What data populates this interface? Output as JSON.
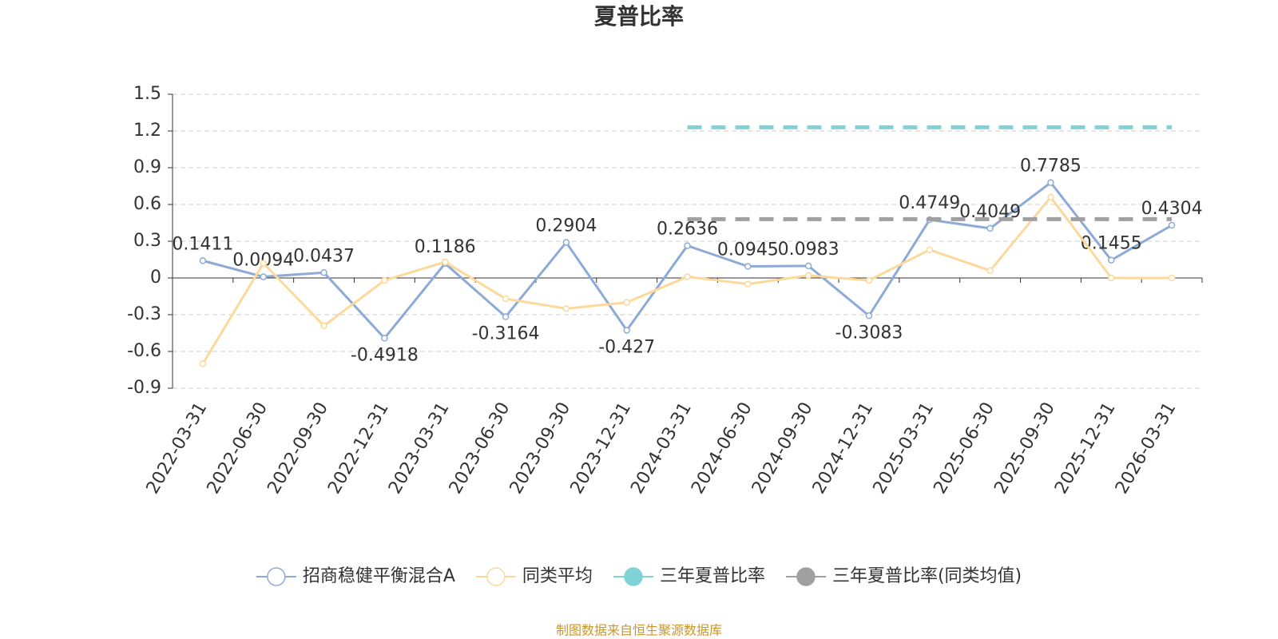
{
  "chart_data": {
    "type": "line",
    "title": "夏普比率",
    "categories": [
      "2022-03-31",
      "2022-06-30",
      "2022-09-30",
      "2022-12-31",
      "2023-03-31",
      "2023-06-30",
      "2023-09-30",
      "2023-12-31",
      "2024-03-31",
      "2024-06-30",
      "2024-09-30",
      "2024-12-31",
      "2025-03-31",
      "2025-06-30",
      "2025-09-30",
      "2025-12-31",
      "2026-03-31"
    ],
    "series": [
      {
        "name": "招商稳健平衡混合A",
        "color": "#8eaad6",
        "labels": true,
        "values": [
          0.1411,
          0.0094,
          0.0437,
          -0.4918,
          0.1186,
          -0.3164,
          0.2904,
          -0.427,
          0.2636,
          0.0945,
          0.0983,
          -0.3083,
          0.4749,
          0.4049,
          0.7785,
          0.1455,
          0.4304
        ]
      },
      {
        "name": "同类平均",
        "color": "#fcd99a",
        "values": [
          -0.7,
          0.12,
          -0.39,
          -0.02,
          0.13,
          -0.17,
          -0.25,
          -0.2,
          0.01,
          -0.05,
          0.02,
          -0.02,
          0.23,
          0.06,
          0.66,
          0.0,
          0.0
        ]
      },
      {
        "name": "三年夏普比率",
        "color": "#7fd3d6",
        "dashed": true,
        "values": [
          null,
          null,
          null,
          null,
          null,
          null,
          null,
          null,
          1.23,
          1.23,
          1.23,
          1.23,
          1.23,
          1.23,
          1.23,
          1.23,
          1.23
        ]
      },
      {
        "name": "三年夏普比率(同类均值)",
        "color": "#a0a0a0",
        "dashed": true,
        "values": [
          null,
          null,
          null,
          null,
          null,
          null,
          null,
          null,
          0.48,
          0.48,
          0.48,
          0.48,
          0.48,
          0.48,
          0.48,
          0.48,
          0.48
        ]
      }
    ],
    "ylim": [
      -0.9,
      1.5
    ],
    "yticks": [
      -0.9,
      -0.6,
      -0.3,
      0,
      0.3,
      0.6,
      0.9,
      1.2,
      1.5
    ],
    "grid": true,
    "legend": "bottom",
    "source": "制图数据来自恒生聚源数据库"
  }
}
